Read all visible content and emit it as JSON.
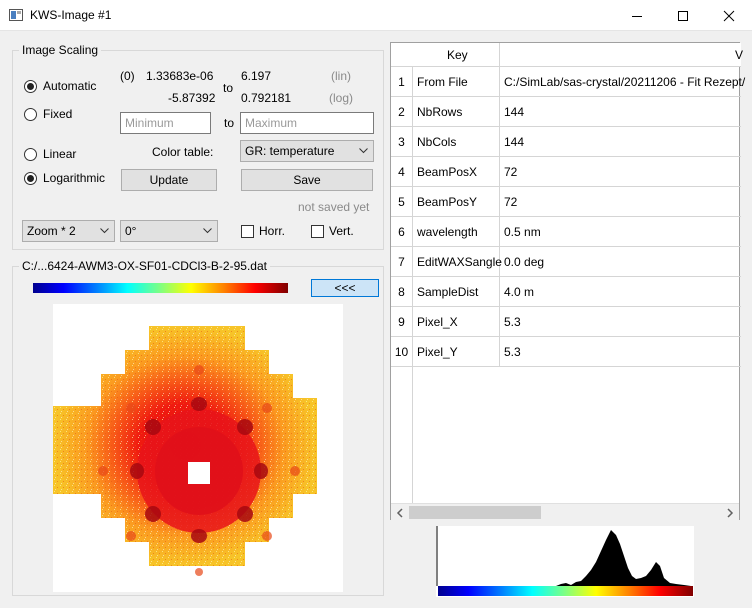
{
  "window": {
    "title": "KWS-Image #1"
  },
  "scaling": {
    "group_title": "Image Scaling",
    "automatic_label": "Automatic",
    "fixed_label": "Fixed",
    "linear_label": "Linear",
    "logarithmic_label": "Logarithmic",
    "auto_index": "(0)",
    "lin_min": "1.33683e-06",
    "lin_max": "6.197",
    "log_min": "-5.87392",
    "log_max": "0.792181",
    "to_label": "to",
    "lin_tag": "(lin)",
    "log_tag": "(log)",
    "min_placeholder": "Minimum",
    "max_placeholder": "Maximum",
    "color_table_label": "Color table:",
    "color_table_value": "GR: temperature",
    "update_label": "Update",
    "save_label": "Save",
    "save_status": "not saved yet",
    "zoom_value": "Zoom * 2",
    "rotation_value": "0°",
    "horz_label": "Horr.",
    "vert_label": "Vert.",
    "selected_scale_mode": "Automatic",
    "selected_axis_mode": "Logarithmic"
  },
  "image_panel": {
    "file_path": "C:/...6424-AWM3-OX-SF01-CDCl3-B-2-95.dat",
    "collapse_label": "<<<"
  },
  "table": {
    "col_key": "Key",
    "col_value": "V",
    "rows": [
      {
        "num": "1",
        "key": "From File",
        "value": "C:/SimLab/sas-crystal/20211206 - Fit Rezept/"
      },
      {
        "num": "2",
        "key": "NbRows",
        "value": "144"
      },
      {
        "num": "3",
        "key": "NbCols",
        "value": "144"
      },
      {
        "num": "4",
        "key": "BeamPosX",
        "value": "72"
      },
      {
        "num": "5",
        "key": "BeamPosY",
        "value": "72"
      },
      {
        "num": "6",
        "key": "wavelength",
        "value": "0.5 nm"
      },
      {
        "num": "7",
        "key": "EditWAXSangle",
        "value": "0.0 deg"
      },
      {
        "num": "8",
        "key": "SampleDist",
        "value": "4.0 m"
      },
      {
        "num": "9",
        "key": "Pixel_X",
        "value": "5.3"
      },
      {
        "num": "10",
        "key": "Pixel_Y",
        "value": "5.3"
      }
    ]
  },
  "colors": {
    "accent_button": "#cce4f7",
    "accent_border": "#0078d7"
  }
}
